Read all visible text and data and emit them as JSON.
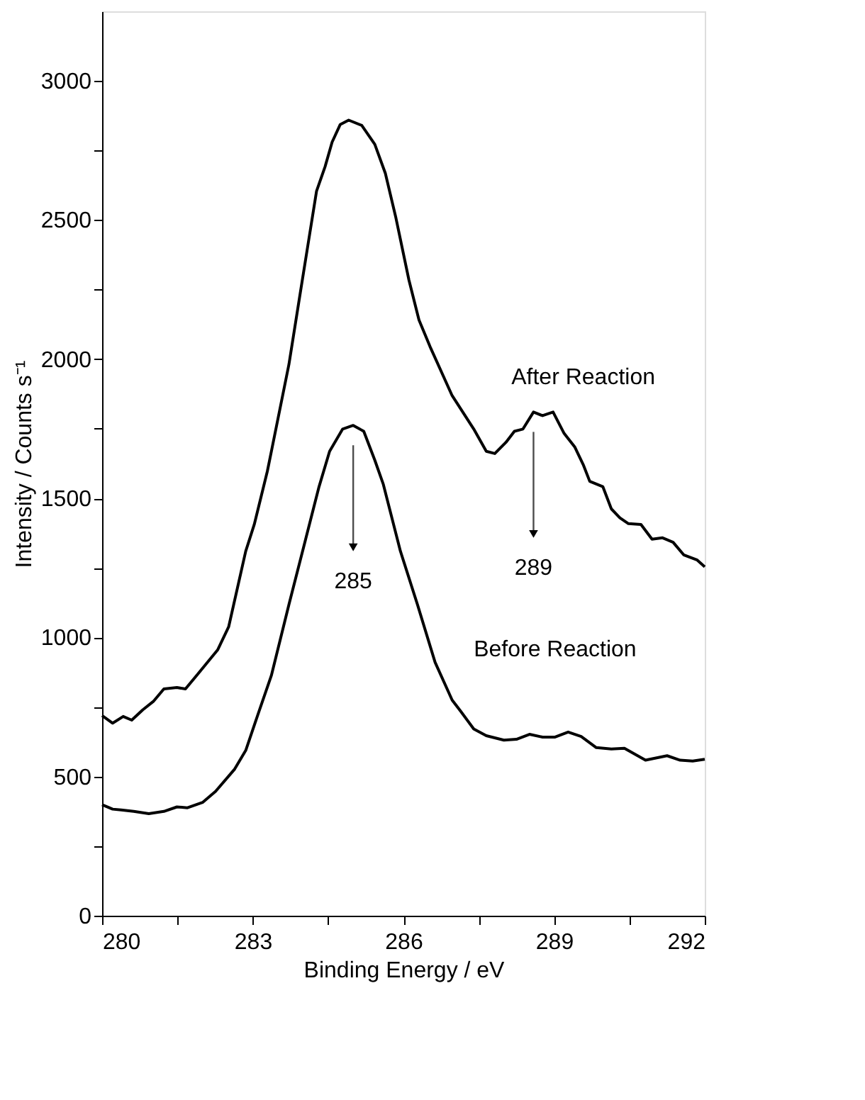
{
  "chart_data": {
    "type": "line",
    "xlabel": "Binding Energy / eV",
    "ylabel": "Intensity / Counts s⁻¹",
    "xlim": [
      280,
      292
    ],
    "ylim": [
      0,
      3250
    ],
    "xticks": [
      280,
      {
        "value": 281.5,
        "label": null
      },
      283,
      {
        "value": 284.5,
        "label": null
      },
      286,
      {
        "value": 287.5,
        "label": null
      },
      289,
      {
        "value": 290.5,
        "label": null
      },
      292
    ],
    "yticks": [
      0,
      {
        "value": 250,
        "label": null
      },
      500,
      {
        "value": 750,
        "label": null
      },
      1000,
      {
        "value": 1250,
        "label": null
      },
      1500,
      {
        "value": 1750,
        "label": null
      },
      2000,
      {
        "value": 2250,
        "label": null
      },
      2500,
      {
        "value": 2750,
        "label": null
      },
      3000
    ],
    "grid": false,
    "legend": false,
    "marker": "none",
    "line_style": "solid",
    "series": [
      {
        "name": "After Reaction",
        "color": "#000000",
        "x": [
          280.0,
          280.21,
          280.42,
          280.59,
          280.81,
          281.02,
          281.23,
          281.49,
          281.66,
          281.88,
          282.3,
          282.52,
          282.86,
          283.03,
          283.29,
          283.38,
          283.72,
          283.93,
          284.1,
          284.27,
          284.44,
          284.58,
          284.74,
          284.91,
          285.17,
          285.43,
          285.64,
          285.85,
          286.11,
          286.31,
          286.53,
          286.97,
          287.4,
          287.65,
          287.82,
          288.04,
          288.21,
          288.38,
          288.59,
          288.77,
          288.98,
          289.2,
          289.41,
          289.58,
          289.71,
          289.97,
          290.14,
          290.31,
          290.48,
          290.73,
          290.95,
          291.16,
          291.37,
          291.58,
          291.85,
          292.0
        ],
        "values": [
          719,
          692,
          716,
          703,
          740,
          770,
          815,
          820,
          815,
          863,
          955,
          1038,
          1310,
          1406,
          1597,
          1677,
          1981,
          2220,
          2412,
          2604,
          2692,
          2780,
          2843,
          2859,
          2840,
          2772,
          2668,
          2508,
          2284,
          2141,
          2045,
          1869,
          1749,
          1669,
          1661,
          1701,
          1741,
          1749,
          1810,
          1797,
          1810,
          1733,
          1685,
          1621,
          1561,
          1542,
          1462,
          1430,
          1409,
          1406,
          1353,
          1358,
          1342,
          1297,
          1278,
          1254
        ]
      },
      {
        "name": "Before Reaction",
        "color": "#000000",
        "x": [
          280.0,
          280.21,
          280.38,
          280.63,
          280.93,
          281.23,
          281.49,
          281.7,
          282.0,
          282.26,
          282.64,
          282.86,
          283.11,
          283.37,
          283.72,
          284.06,
          284.32,
          284.53,
          284.79,
          285.0,
          285.21,
          285.43,
          285.6,
          285.94,
          286.28,
          286.63,
          286.97,
          287.14,
          287.4,
          287.65,
          288.0,
          288.25,
          288.51,
          288.77,
          289.02,
          289.28,
          289.54,
          289.84,
          290.14,
          290.4,
          290.82,
          291.25,
          291.51,
          291.76,
          292.0
        ],
        "values": [
          399,
          383,
          380,
          375,
          367,
          375,
          391,
          388,
          407,
          447,
          527,
          594,
          727,
          863,
          1118,
          1358,
          1542,
          1669,
          1749,
          1762,
          1741,
          1637,
          1550,
          1310,
          1118,
          911,
          775,
          735,
          671,
          647,
          631,
          634,
          652,
          642,
          642,
          660,
          644,
          604,
          599,
          602,
          559,
          575,
          559,
          556,
          562
        ]
      }
    ],
    "annotations": [
      "285",
      "289"
    ]
  }
}
